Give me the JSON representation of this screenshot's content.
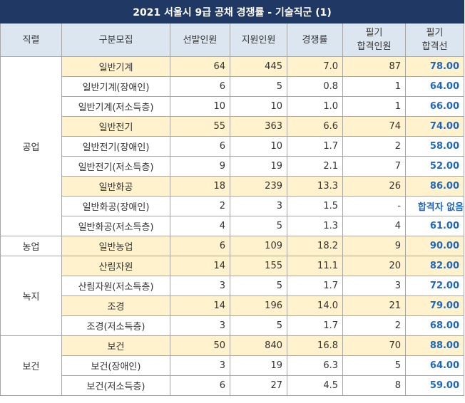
{
  "title": "2021 서울시 9급 공채 경쟁률 - 기술직군 (1)",
  "headers": [
    "직렬",
    "구분모집",
    "선발인원",
    "지원인원",
    "경쟁률",
    "필기\n합격인원",
    "필기\n합격선"
  ],
  "groups": [
    {
      "name": "공업",
      "rows": [
        {
          "cat": "일반기계",
          "sel": "64",
          "app": "445",
          "rate": "7.0",
          "passn": "87",
          "cut": "78.00",
          "hl": true
        },
        {
          "cat": "일반기계(장애인)",
          "sel": "6",
          "app": "5",
          "rate": "0.8",
          "passn": "1",
          "cut": "64.00",
          "hl": false
        },
        {
          "cat": "일반기계(저소득층)",
          "sel": "10",
          "app": "10",
          "rate": "1.0",
          "passn": "1",
          "cut": "66.00",
          "hl": false
        },
        {
          "cat": "일반전기",
          "sel": "55",
          "app": "363",
          "rate": "6.6",
          "passn": "74",
          "cut": "74.00",
          "hl": true
        },
        {
          "cat": "일반전기(장애인)",
          "sel": "6",
          "app": "10",
          "rate": "1.7",
          "passn": "2",
          "cut": "58.00",
          "hl": false
        },
        {
          "cat": "일반전기(저소득층)",
          "sel": "9",
          "app": "19",
          "rate": "2.1",
          "passn": "7",
          "cut": "52.00",
          "hl": false
        },
        {
          "cat": "일반화공",
          "sel": "18",
          "app": "239",
          "rate": "13.3",
          "passn": "26",
          "cut": "86.00",
          "hl": true
        },
        {
          "cat": "일반화공(장애인)",
          "sel": "2",
          "app": "3",
          "rate": "1.5",
          "passn": "-",
          "cut": "합격자 없음",
          "hl": false
        },
        {
          "cat": "일반화공(저소득층)",
          "sel": "4",
          "app": "5",
          "rate": "1.3",
          "passn": "4",
          "cut": "61.00",
          "hl": false
        }
      ]
    },
    {
      "name": "농업",
      "rows": [
        {
          "cat": "일반농업",
          "sel": "6",
          "app": "109",
          "rate": "18.2",
          "passn": "9",
          "cut": "90.00",
          "hl": true
        }
      ]
    },
    {
      "name": "녹지",
      "rows": [
        {
          "cat": "산림자원",
          "sel": "14",
          "app": "155",
          "rate": "11.1",
          "passn": "20",
          "cut": "82.00",
          "hl": true
        },
        {
          "cat": "산림자원(저소득층)",
          "sel": "3",
          "app": "5",
          "rate": "1.7",
          "passn": "3",
          "cut": "72.00",
          "hl": false
        },
        {
          "cat": "조경",
          "sel": "14",
          "app": "196",
          "rate": "14.0",
          "passn": "21",
          "cut": "79.00",
          "hl": true
        },
        {
          "cat": "조경(저소득층)",
          "sel": "3",
          "app": "5",
          "rate": "1.7",
          "passn": "2",
          "cut": "68.00",
          "hl": false
        }
      ]
    },
    {
      "name": "보건",
      "rows": [
        {
          "cat": "보건",
          "sel": "50",
          "app": "840",
          "rate": "16.8",
          "passn": "70",
          "cut": "88.00",
          "hl": true
        },
        {
          "cat": "보건(장애인)",
          "sel": "3",
          "app": "19",
          "rate": "6.3",
          "passn": "5",
          "cut": "64.00",
          "hl": false
        },
        {
          "cat": "보건(저소득층)",
          "sel": "6",
          "app": "27",
          "rate": "4.5",
          "passn": "8",
          "cut": "59.00",
          "hl": false
        }
      ]
    }
  ]
}
